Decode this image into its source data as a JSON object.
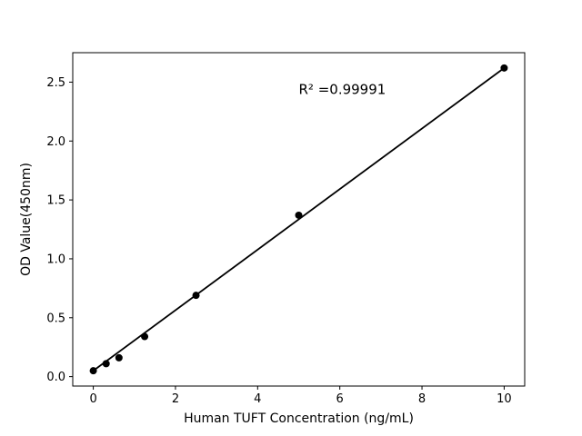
{
  "figure": {
    "background": "#ffffff"
  },
  "chart_data": {
    "type": "scatter",
    "title": "",
    "xlabel": "Human TUFT Concentration (ng/mL)",
    "ylabel": "OD Value(450nm)",
    "annotation": {
      "text": "R² =0.99991",
      "x": 5.0,
      "y": 2.4
    },
    "x": [
      0,
      0.3125,
      0.625,
      1.25,
      2.5,
      5,
      10
    ],
    "y": [
      0.05,
      0.11,
      0.16,
      0.34,
      0.69,
      1.37,
      2.62
    ],
    "fit_line": {
      "x": [
        0,
        10
      ],
      "y": [
        0.05,
        2.62
      ],
      "r_squared": 0.99991
    },
    "xtick_values": [
      0,
      2,
      4,
      6,
      8,
      10
    ],
    "xtick_labels": [
      "0",
      "2",
      "4",
      "6",
      "8",
      "10"
    ],
    "ytick_values": [
      0.0,
      0.5,
      1.0,
      1.5,
      2.0,
      2.5
    ],
    "ytick_labels": [
      "0.0",
      "0.5",
      "1.0",
      "1.5",
      "2.0",
      "2.5"
    ],
    "xlim": [
      -0.5,
      10.5
    ],
    "ylim": [
      -0.08,
      2.75
    ],
    "grid": false,
    "legend": null,
    "marker_color": "#000000",
    "line_color": "#000000",
    "axis_color": "#000000"
  }
}
